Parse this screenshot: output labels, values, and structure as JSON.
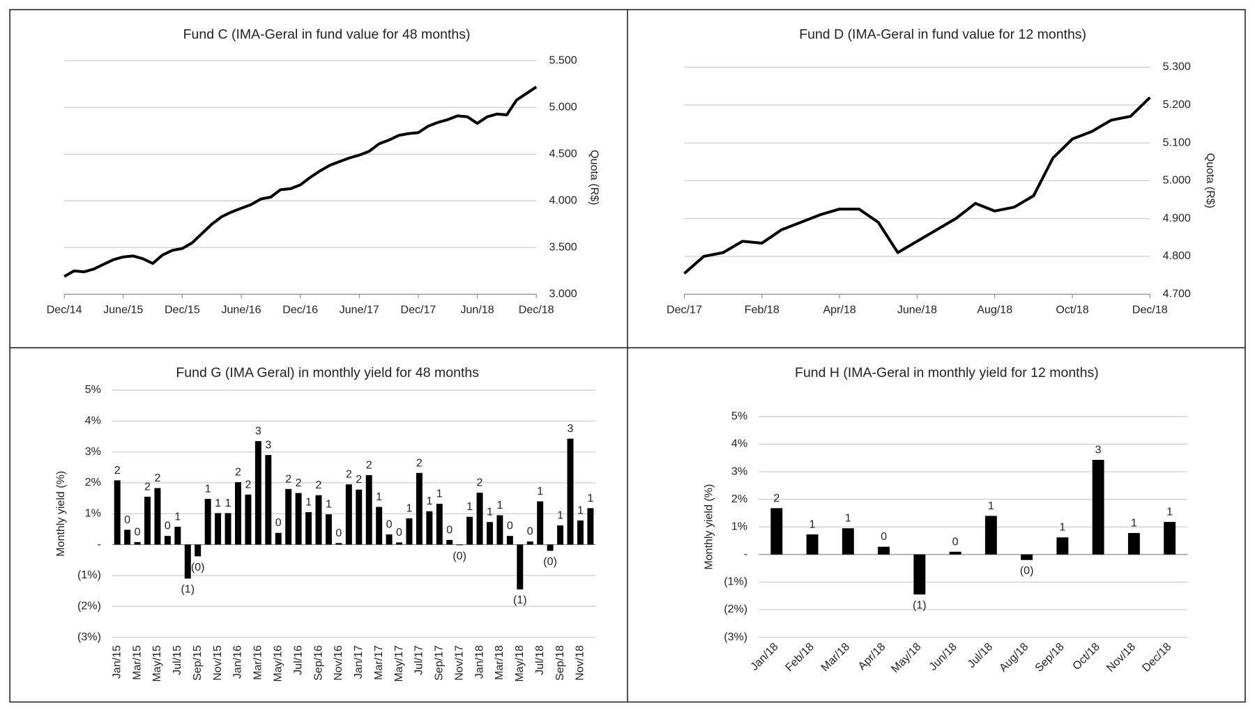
{
  "chart_data": [
    {
      "type": "line",
      "title": "Fund C (IMA-Geral in fund value for 48 months)",
      "y_label": "Quota (R$)",
      "y_axis_position": "right",
      "grid": true,
      "color": "#000000",
      "categories": [
        "Dec/14",
        null,
        null,
        null,
        null,
        null,
        "June/15",
        null,
        null,
        null,
        null,
        null,
        "Dec/15",
        null,
        null,
        null,
        null,
        null,
        "June/16",
        null,
        null,
        null,
        null,
        null,
        "Dec/16",
        null,
        null,
        null,
        null,
        null,
        "June/17",
        null,
        null,
        null,
        null,
        null,
        "Dec/17",
        null,
        null,
        null,
        null,
        null,
        "Jun/18",
        null,
        null,
        null,
        null,
        null,
        "Dec/18"
      ],
      "values": [
        3.19,
        3.25,
        3.24,
        3.27,
        3.32,
        3.37,
        3.4,
        3.41,
        3.38,
        3.33,
        3.42,
        3.47,
        3.49,
        3.55,
        3.65,
        3.75,
        3.83,
        3.88,
        3.92,
        3.96,
        4.02,
        4.04,
        4.12,
        4.13,
        4.17,
        4.25,
        4.32,
        4.38,
        4.42,
        4.46,
        4.49,
        4.53,
        4.61,
        4.65,
        4.7,
        4.72,
        4.73,
        4.8,
        4.84,
        4.87,
        4.91,
        4.9,
        4.83,
        4.9,
        4.93,
        4.92,
        5.08,
        5.15,
        5.22
      ],
      "ylim": [
        3,
        5.5
      ],
      "yticks": [
        {
          "value": 3,
          "label": "3.000"
        },
        {
          "value": 3.5,
          "label": "3.500"
        },
        {
          "value": 4,
          "label": "4.000"
        },
        {
          "value": 4.5,
          "label": "4.500"
        },
        {
          "value": 5,
          "label": "5.000"
        },
        {
          "value": 5.5,
          "label": "5.500"
        }
      ]
    },
    {
      "type": "line",
      "title": "Fund D (IMA-Geral in fund value for 12 months)",
      "y_label": "Quota (R$)",
      "y_axis_position": "right",
      "grid": true,
      "color": "#000000",
      "categories": [
        "Dec/17",
        null,
        null,
        null,
        "Feb/18",
        null,
        null,
        null,
        "Apr/18",
        null,
        null,
        null,
        "June/18",
        null,
        null,
        null,
        "Aug/18",
        null,
        null,
        null,
        "Oct/18",
        null,
        null,
        null,
        "Dec/18"
      ],
      "values": [
        4.755,
        4.8,
        4.81,
        4.84,
        4.835,
        4.87,
        4.89,
        4.91,
        4.925,
        4.925,
        4.89,
        4.81,
        4.84,
        4.87,
        4.9,
        4.94,
        4.92,
        4.93,
        4.96,
        5.06,
        5.11,
        5.13,
        5.16,
        5.17,
        5.22
      ],
      "ylim": [
        4.7,
        5.3
      ],
      "yticks": [
        {
          "value": 4.7,
          "label": "4.700"
        },
        {
          "value": 4.8,
          "label": "4.800"
        },
        {
          "value": 4.9,
          "label": "4.900"
        },
        {
          "value": 5,
          "label": "5.000"
        },
        {
          "value": 5.1,
          "label": "5.100"
        },
        {
          "value": 5.2,
          "label": "5.200"
        },
        {
          "value": 5.3,
          "label": "5.300"
        }
      ]
    },
    {
      "type": "bar",
      "title": "Fund G (IMA Geral) in monthly yield for 48 months",
      "y_label": "Monthly yield (%)",
      "y_axis_position": "left",
      "grid": true,
      "color": "#000000",
      "categories": [
        "Jan/15",
        null,
        "Mar/15",
        null,
        "May/15",
        null,
        "Jul/15",
        null,
        "Sep/15",
        null,
        "Nov/15",
        null,
        "Jan/16",
        null,
        "Mar/16",
        null,
        "May/16",
        null,
        "Jul/16",
        null,
        "Sep/16",
        null,
        "Nov/16",
        null,
        "Jan/17",
        null,
        "Mar/17",
        null,
        "May/17",
        null,
        "Jul/17",
        null,
        "Sep/17",
        null,
        "Nov/17",
        null,
        "Jan/18",
        null,
        "Mar/18",
        null,
        "May/18",
        null,
        "Jul/18",
        null,
        "Sep/18",
        null,
        "Nov/18",
        null
      ],
      "values": [
        2.08,
        0.48,
        0.08,
        1.55,
        1.83,
        0.28,
        0.58,
        -1.1,
        -0.38,
        1.48,
        1.02,
        1.02,
        2.02,
        1.62,
        3.35,
        2.9,
        0.38,
        1.8,
        1.67,
        1.05,
        1.6,
        0.98,
        0.05,
        1.95,
        1.78,
        2.25,
        1.22,
        0.33,
        0.07,
        0.85,
        2.32,
        1.08,
        1.32,
        0.15,
        -0.02,
        0.9,
        1.68,
        0.73,
        0.95,
        0.28,
        -1.45,
        0.1,
        1.4,
        -0.2,
        0.62,
        3.43,
        0.78,
        1.18
      ],
      "value_labels": [
        "2",
        "0",
        "0",
        "2",
        "2",
        "0",
        "1",
        "(1)",
        "(0)",
        "1",
        "1",
        "1",
        "2",
        "2",
        "3",
        "3",
        "0",
        "2",
        "2",
        "1",
        "2",
        "1",
        "0",
        "2",
        "2",
        "2",
        "1",
        "0",
        "0",
        "1",
        "2",
        "1",
        "1",
        "0",
        "(0)",
        "1",
        "2",
        "1",
        "1",
        "0",
        "(1)",
        "0",
        "1",
        "(0)",
        "1",
        "3",
        "1",
        "1"
      ],
      "ylim": [
        -3,
        5
      ],
      "yticks": [
        {
          "value": -3,
          "label": "(3%)"
        },
        {
          "value": -2,
          "label": "(2%)"
        },
        {
          "value": -1,
          "label": "(1%)"
        },
        {
          "value": 0,
          "label": "-"
        },
        {
          "value": 1,
          "label": "1%"
        },
        {
          "value": 2,
          "label": "2%"
        },
        {
          "value": 3,
          "label": "3%"
        },
        {
          "value": 4,
          "label": "4%"
        },
        {
          "value": 5,
          "label": "5%"
        }
      ]
    },
    {
      "type": "bar",
      "title": "Fund H (IMA-Geral in monthly yield for 12 months)",
      "y_label": "Monthly yield (%)",
      "y_axis_position": "left",
      "grid": true,
      "color": "#000000",
      "categories": [
        "Jan/18",
        "Feb/18",
        "Mar/18",
        "Apr/18",
        "May/18",
        "Jun/18",
        "Jul/18",
        "Aug/18",
        "Sep/18",
        "Oct/18",
        "Nov/18",
        "Dec/18"
      ],
      "values": [
        1.68,
        0.73,
        0.95,
        0.28,
        -1.45,
        0.1,
        1.4,
        -0.2,
        0.62,
        3.43,
        0.78,
        1.18
      ],
      "value_labels": [
        "2",
        "1",
        "1",
        "0",
        "(1)",
        "0",
        "1",
        "(0)",
        "1",
        "3",
        "1",
        "1"
      ],
      "ylim": [
        -3,
        5
      ],
      "yticks": [
        {
          "value": -3,
          "label": "(3%)"
        },
        {
          "value": -2,
          "label": "(2%)"
        },
        {
          "value": -1,
          "label": "(1%)"
        },
        {
          "value": 0,
          "label": "-"
        },
        {
          "value": 1,
          "label": "1%"
        },
        {
          "value": 2,
          "label": "2%"
        },
        {
          "value": 3,
          "label": "3%"
        },
        {
          "value": 4,
          "label": "4%"
        },
        {
          "value": 5,
          "label": "5%"
        }
      ]
    }
  ]
}
